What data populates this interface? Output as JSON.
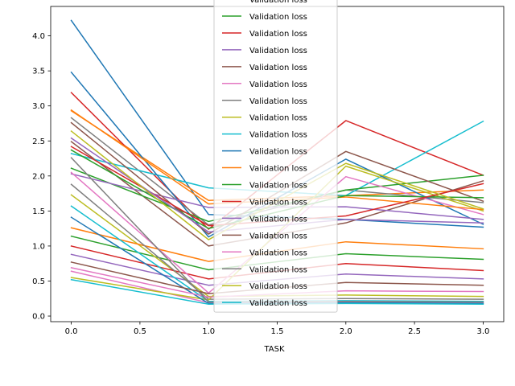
{
  "chart_data": {
    "type": "line",
    "title": "",
    "xlabel": "TASK",
    "ylabel": "",
    "xlim": [
      -0.15,
      3.15
    ],
    "ylim": [
      -0.08,
      4.42
    ],
    "x": [
      0,
      1,
      2,
      3
    ],
    "xticks": [
      "0.0",
      "0.5",
      "1.0",
      "1.5",
      "2.0",
      "2.5",
      "3.0"
    ],
    "yticks": [
      "0.0",
      "0.5",
      "1.0",
      "1.5",
      "2.0",
      "2.5",
      "3.0",
      "3.5",
      "4.0"
    ],
    "grid": false,
    "legend_position": "top-center",
    "series": [
      {
        "name": "Validation loss",
        "color": "#1f77b4",
        "values": [
          4.22,
          1.45,
          1.38,
          1.27
        ]
      },
      {
        "name": "Validation loss",
        "color": "#ff7f0e",
        "values": [
          2.93,
          1.65,
          1.72,
          1.8
        ]
      },
      {
        "name": "Validation loss",
        "color": "#2ca02c",
        "values": [
          1.14,
          0.66,
          0.89,
          0.81
        ]
      },
      {
        "name": "Validation loss",
        "color": "#d62728",
        "values": [
          3.19,
          1.24,
          2.79,
          2.01
        ]
      },
      {
        "name": "Validation loss",
        "color": "#9467bd",
        "values": [
          0.88,
          0.44,
          0.6,
          0.53
        ]
      },
      {
        "name": "Validation loss",
        "color": "#8c564b",
        "values": [
          2.49,
          1.0,
          1.33,
          1.93
        ]
      },
      {
        "name": "Validation loss",
        "color": "#e377c2",
        "values": [
          0.64,
          0.19,
          0.2,
          0.19
        ]
      },
      {
        "name": "Validation loss",
        "color": "#7f7f7f",
        "values": [
          2.83,
          1.3,
          1.8,
          1.62
        ]
      },
      {
        "name": "Validation loss",
        "color": "#bcbd22",
        "values": [
          1.73,
          0.28,
          0.3,
          0.28
        ]
      },
      {
        "name": "Validation loss",
        "color": "#17becf",
        "values": [
          2.32,
          1.83,
          1.72,
          2.78
        ]
      },
      {
        "name": "Validation loss",
        "color": "#1f77b4",
        "values": [
          3.48,
          1.13,
          2.24,
          1.31
        ]
      },
      {
        "name": "Validation loss",
        "color": "#ff7f0e",
        "values": [
          1.26,
          0.78,
          1.06,
          0.96
        ]
      },
      {
        "name": "Validation loss",
        "color": "#2ca02c",
        "values": [
          2.11,
          1.35,
          1.8,
          2.01
        ]
      },
      {
        "name": "Validation loss",
        "color": "#d62728",
        "values": [
          1.0,
          0.53,
          0.75,
          0.65
        ]
      },
      {
        "name": "Validation loss",
        "color": "#9467bd",
        "values": [
          2.03,
          1.55,
          1.56,
          1.38
        ]
      },
      {
        "name": "Validation loss",
        "color": "#8c564b",
        "values": [
          2.76,
          1.17,
          2.35,
          1.64
        ]
      },
      {
        "name": "Validation loss",
        "color": "#e377c2",
        "values": [
          2.05,
          0.33,
          1.99,
          1.45
        ]
      },
      {
        "name": "Validation loss",
        "color": "#7f7f7f",
        "values": [
          1.88,
          0.24,
          0.25,
          0.24
        ]
      },
      {
        "name": "Validation loss",
        "color": "#bcbd22",
        "values": [
          0.55,
          0.23,
          2.14,
          1.5
        ]
      },
      {
        "name": "Validation loss",
        "color": "#17becf",
        "values": [
          1.57,
          0.21,
          0.22,
          0.21
        ]
      },
      {
        "name": "Validation loss",
        "color": "#1f77b4",
        "values": [
          1.41,
          0.18,
          0.19,
          0.18
        ]
      },
      {
        "name": "Validation loss",
        "color": "#ff7f0e",
        "values": [
          2.94,
          1.6,
          1.7,
          1.52
        ]
      },
      {
        "name": "Validation loss",
        "color": "#2ca02c",
        "values": [
          2.37,
          1.25,
          1.72,
          1.69
        ]
      },
      {
        "name": "Validation loss",
        "color": "#d62728",
        "values": [
          2.42,
          1.29,
          1.43,
          1.89
        ]
      },
      {
        "name": "Validation loss",
        "color": "#9467bd",
        "values": [
          2.54,
          1.2,
          1.38,
          1.33
        ]
      },
      {
        "name": "Validation loss",
        "color": "#8c564b",
        "values": [
          0.77,
          0.32,
          0.48,
          0.44
        ]
      },
      {
        "name": "Validation loss",
        "color": "#e377c2",
        "values": [
          0.69,
          0.27,
          0.36,
          0.35
        ]
      },
      {
        "name": "Validation loss",
        "color": "#7f7f7f",
        "values": [
          2.26,
          0.2,
          0.21,
          0.2
        ]
      },
      {
        "name": "Validation loss",
        "color": "#bcbd22",
        "values": [
          2.64,
          1.09,
          2.18,
          1.53
        ]
      },
      {
        "name": "Validation loss",
        "color": "#17becf",
        "values": [
          0.52,
          0.17,
          0.18,
          0.17
        ]
      }
    ],
    "legend_entries": [
      {
        "label": "Validation loss",
        "color": "#2ca02c"
      },
      {
        "label": "Validation loss",
        "color": "#d62728"
      },
      {
        "label": "Validation loss",
        "color": "#9467bd"
      },
      {
        "label": "Validation loss",
        "color": "#8c564b"
      },
      {
        "label": "Validation loss",
        "color": "#e377c2"
      },
      {
        "label": "Validation loss",
        "color": "#7f7f7f"
      },
      {
        "label": "Validation loss",
        "color": "#bcbd22"
      },
      {
        "label": "Validation loss",
        "color": "#17becf"
      },
      {
        "label": "Validation loss",
        "color": "#1f77b4"
      },
      {
        "label": "Validation loss",
        "color": "#ff7f0e"
      },
      {
        "label": "Validation loss",
        "color": "#2ca02c"
      },
      {
        "label": "Validation loss",
        "color": "#d62728"
      },
      {
        "label": "Validation loss",
        "color": "#9467bd"
      },
      {
        "label": "Validation loss",
        "color": "#8c564b"
      },
      {
        "label": "Validation loss",
        "color": "#e377c2"
      },
      {
        "label": "Validation loss",
        "color": "#7f7f7f"
      },
      {
        "label": "Validation loss",
        "color": "#bcbd22"
      },
      {
        "label": "Validation loss",
        "color": "#17becf"
      }
    ]
  }
}
